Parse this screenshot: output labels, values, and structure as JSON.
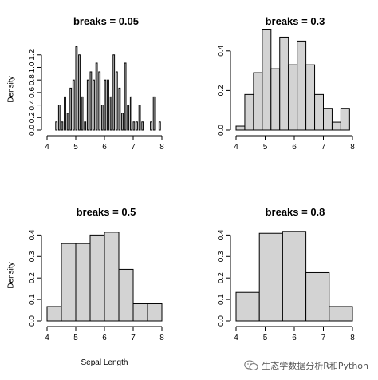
{
  "chart_data": [
    {
      "type": "bar",
      "title": "breaks = 0.05",
      "xlabel": "",
      "ylabel": "Density",
      "xlim": [
        4,
        8
      ],
      "ylim": [
        0,
        1.35
      ],
      "xticks": [
        "4",
        "5",
        "6",
        "7",
        "8"
      ],
      "yticks": [
        "0.0",
        "0.2",
        "0.4",
        "0.6",
        "0.8",
        "1.0",
        "1.2"
      ],
      "bin_width": 0.05,
      "bins": [
        {
          "x0": 4.3,
          "x1": 4.35,
          "density": 0.13
        },
        {
          "x0": 4.4,
          "x1": 4.45,
          "density": 0.4
        },
        {
          "x0": 4.5,
          "x1": 4.55,
          "density": 0.13
        },
        {
          "x0": 4.6,
          "x1": 4.65,
          "density": 0.53
        },
        {
          "x0": 4.7,
          "x1": 4.75,
          "density": 0.27
        },
        {
          "x0": 4.8,
          "x1": 4.85,
          "density": 0.67
        },
        {
          "x0": 4.9,
          "x1": 4.95,
          "density": 0.8
        },
        {
          "x0": 5.0,
          "x1": 5.05,
          "density": 1.33
        },
        {
          "x0": 5.1,
          "x1": 5.15,
          "density": 1.2
        },
        {
          "x0": 5.2,
          "x1": 5.25,
          "density": 0.53
        },
        {
          "x0": 5.3,
          "x1": 5.35,
          "density": 0.13
        },
        {
          "x0": 5.4,
          "x1": 5.45,
          "density": 0.8
        },
        {
          "x0": 5.5,
          "x1": 5.55,
          "density": 0.93
        },
        {
          "x0": 5.6,
          "x1": 5.65,
          "density": 0.8
        },
        {
          "x0": 5.7,
          "x1": 5.75,
          "density": 1.07
        },
        {
          "x0": 5.8,
          "x1": 5.85,
          "density": 0.93
        },
        {
          "x0": 5.9,
          "x1": 5.95,
          "density": 0.4
        },
        {
          "x0": 6.0,
          "x1": 6.05,
          "density": 0.8
        },
        {
          "x0": 6.1,
          "x1": 6.15,
          "density": 0.8
        },
        {
          "x0": 6.2,
          "x1": 6.25,
          "density": 0.53
        },
        {
          "x0": 6.3,
          "x1": 6.35,
          "density": 1.2
        },
        {
          "x0": 6.4,
          "x1": 6.45,
          "density": 0.93
        },
        {
          "x0": 6.5,
          "x1": 6.55,
          "density": 0.67
        },
        {
          "x0": 6.6,
          "x1": 6.65,
          "density": 0.27
        },
        {
          "x0": 6.7,
          "x1": 6.75,
          "density": 1.07
        },
        {
          "x0": 6.8,
          "x1": 6.85,
          "density": 0.4
        },
        {
          "x0": 6.9,
          "x1": 6.95,
          "density": 0.53
        },
        {
          "x0": 7.0,
          "x1": 7.05,
          "density": 0.13
        },
        {
          "x0": 7.1,
          "x1": 7.15,
          "density": 0.13
        },
        {
          "x0": 7.2,
          "x1": 7.25,
          "density": 0.4
        },
        {
          "x0": 7.3,
          "x1": 7.35,
          "density": 0.13
        },
        {
          "x0": 7.6,
          "x1": 7.65,
          "density": 0.13
        },
        {
          "x0": 7.7,
          "x1": 7.75,
          "density": 0.53
        },
        {
          "x0": 7.9,
          "x1": 7.95,
          "density": 0.13
        }
      ]
    },
    {
      "type": "bar",
      "title": "breaks = 0.3",
      "xlabel": "",
      "ylabel": "",
      "xlim": [
        4,
        8
      ],
      "ylim": [
        0,
        0.5
      ],
      "xticks": [
        "4",
        "5",
        "6",
        "7",
        "8"
      ],
      "yticks": [
        "0.0",
        "0.2",
        "0.4"
      ],
      "bin_width": 0.3,
      "bins": [
        {
          "x0": 4.0,
          "x1": 4.3,
          "density": 0.02
        },
        {
          "x0": 4.3,
          "x1": 4.6,
          "density": 0.18
        },
        {
          "x0": 4.6,
          "x1": 4.9,
          "density": 0.29
        },
        {
          "x0": 4.9,
          "x1": 5.2,
          "density": 0.51
        },
        {
          "x0": 5.2,
          "x1": 5.5,
          "density": 0.31
        },
        {
          "x0": 5.5,
          "x1": 5.8,
          "density": 0.47
        },
        {
          "x0": 5.8,
          "x1": 6.1,
          "density": 0.33
        },
        {
          "x0": 6.1,
          "x1": 6.4,
          "density": 0.45
        },
        {
          "x0": 6.4,
          "x1": 6.7,
          "density": 0.33
        },
        {
          "x0": 6.7,
          "x1": 7.0,
          "density": 0.18
        },
        {
          "x0": 7.0,
          "x1": 7.3,
          "density": 0.11
        },
        {
          "x0": 7.3,
          "x1": 7.6,
          "density": 0.04
        },
        {
          "x0": 7.6,
          "x1": 7.9,
          "density": 0.11
        }
      ]
    },
    {
      "type": "bar",
      "title": "breaks = 0.5",
      "xlabel": "Sepal Length",
      "ylabel": "Density",
      "xlim": [
        4,
        8
      ],
      "ylim": [
        0,
        0.42
      ],
      "xticks": [
        "4",
        "5",
        "6",
        "7",
        "8"
      ],
      "yticks": [
        "0.0",
        "0.1",
        "0.2",
        "0.3",
        "0.4"
      ],
      "bin_width": 0.5,
      "bins": [
        {
          "x0": 4.0,
          "x1": 4.5,
          "density": 0.067
        },
        {
          "x0": 4.5,
          "x1": 5.0,
          "density": 0.36
        },
        {
          "x0": 5.0,
          "x1": 5.5,
          "density": 0.36
        },
        {
          "x0": 5.5,
          "x1": 6.0,
          "density": 0.4
        },
        {
          "x0": 6.0,
          "x1": 6.5,
          "density": 0.413
        },
        {
          "x0": 6.5,
          "x1": 7.0,
          "density": 0.24
        },
        {
          "x0": 7.0,
          "x1": 7.5,
          "density": 0.08
        },
        {
          "x0": 7.5,
          "x1": 8.0,
          "density": 0.08
        }
      ]
    },
    {
      "type": "bar",
      "title": "breaks = 0.8",
      "xlabel": "",
      "ylabel": "",
      "xlim": [
        4,
        8
      ],
      "ylim": [
        0,
        0.42
      ],
      "xticks": [
        "4",
        "5",
        "6",
        "7",
        "8"
      ],
      "yticks": [
        "0.0",
        "0.1",
        "0.2",
        "0.3",
        "0.4"
      ],
      "bin_width": 0.8,
      "bins": [
        {
          "x0": 4.0,
          "x1": 4.8,
          "density": 0.133
        },
        {
          "x0": 4.8,
          "x1": 5.6,
          "density": 0.408
        },
        {
          "x0": 5.6,
          "x1": 6.4,
          "density": 0.417
        },
        {
          "x0": 6.4,
          "x1": 7.2,
          "density": 0.225
        },
        {
          "x0": 7.2,
          "x1": 8.0,
          "density": 0.067
        }
      ]
    }
  ],
  "watermark": {
    "icon": "wechat-icon",
    "text": "生态学数据分析R和Python"
  }
}
